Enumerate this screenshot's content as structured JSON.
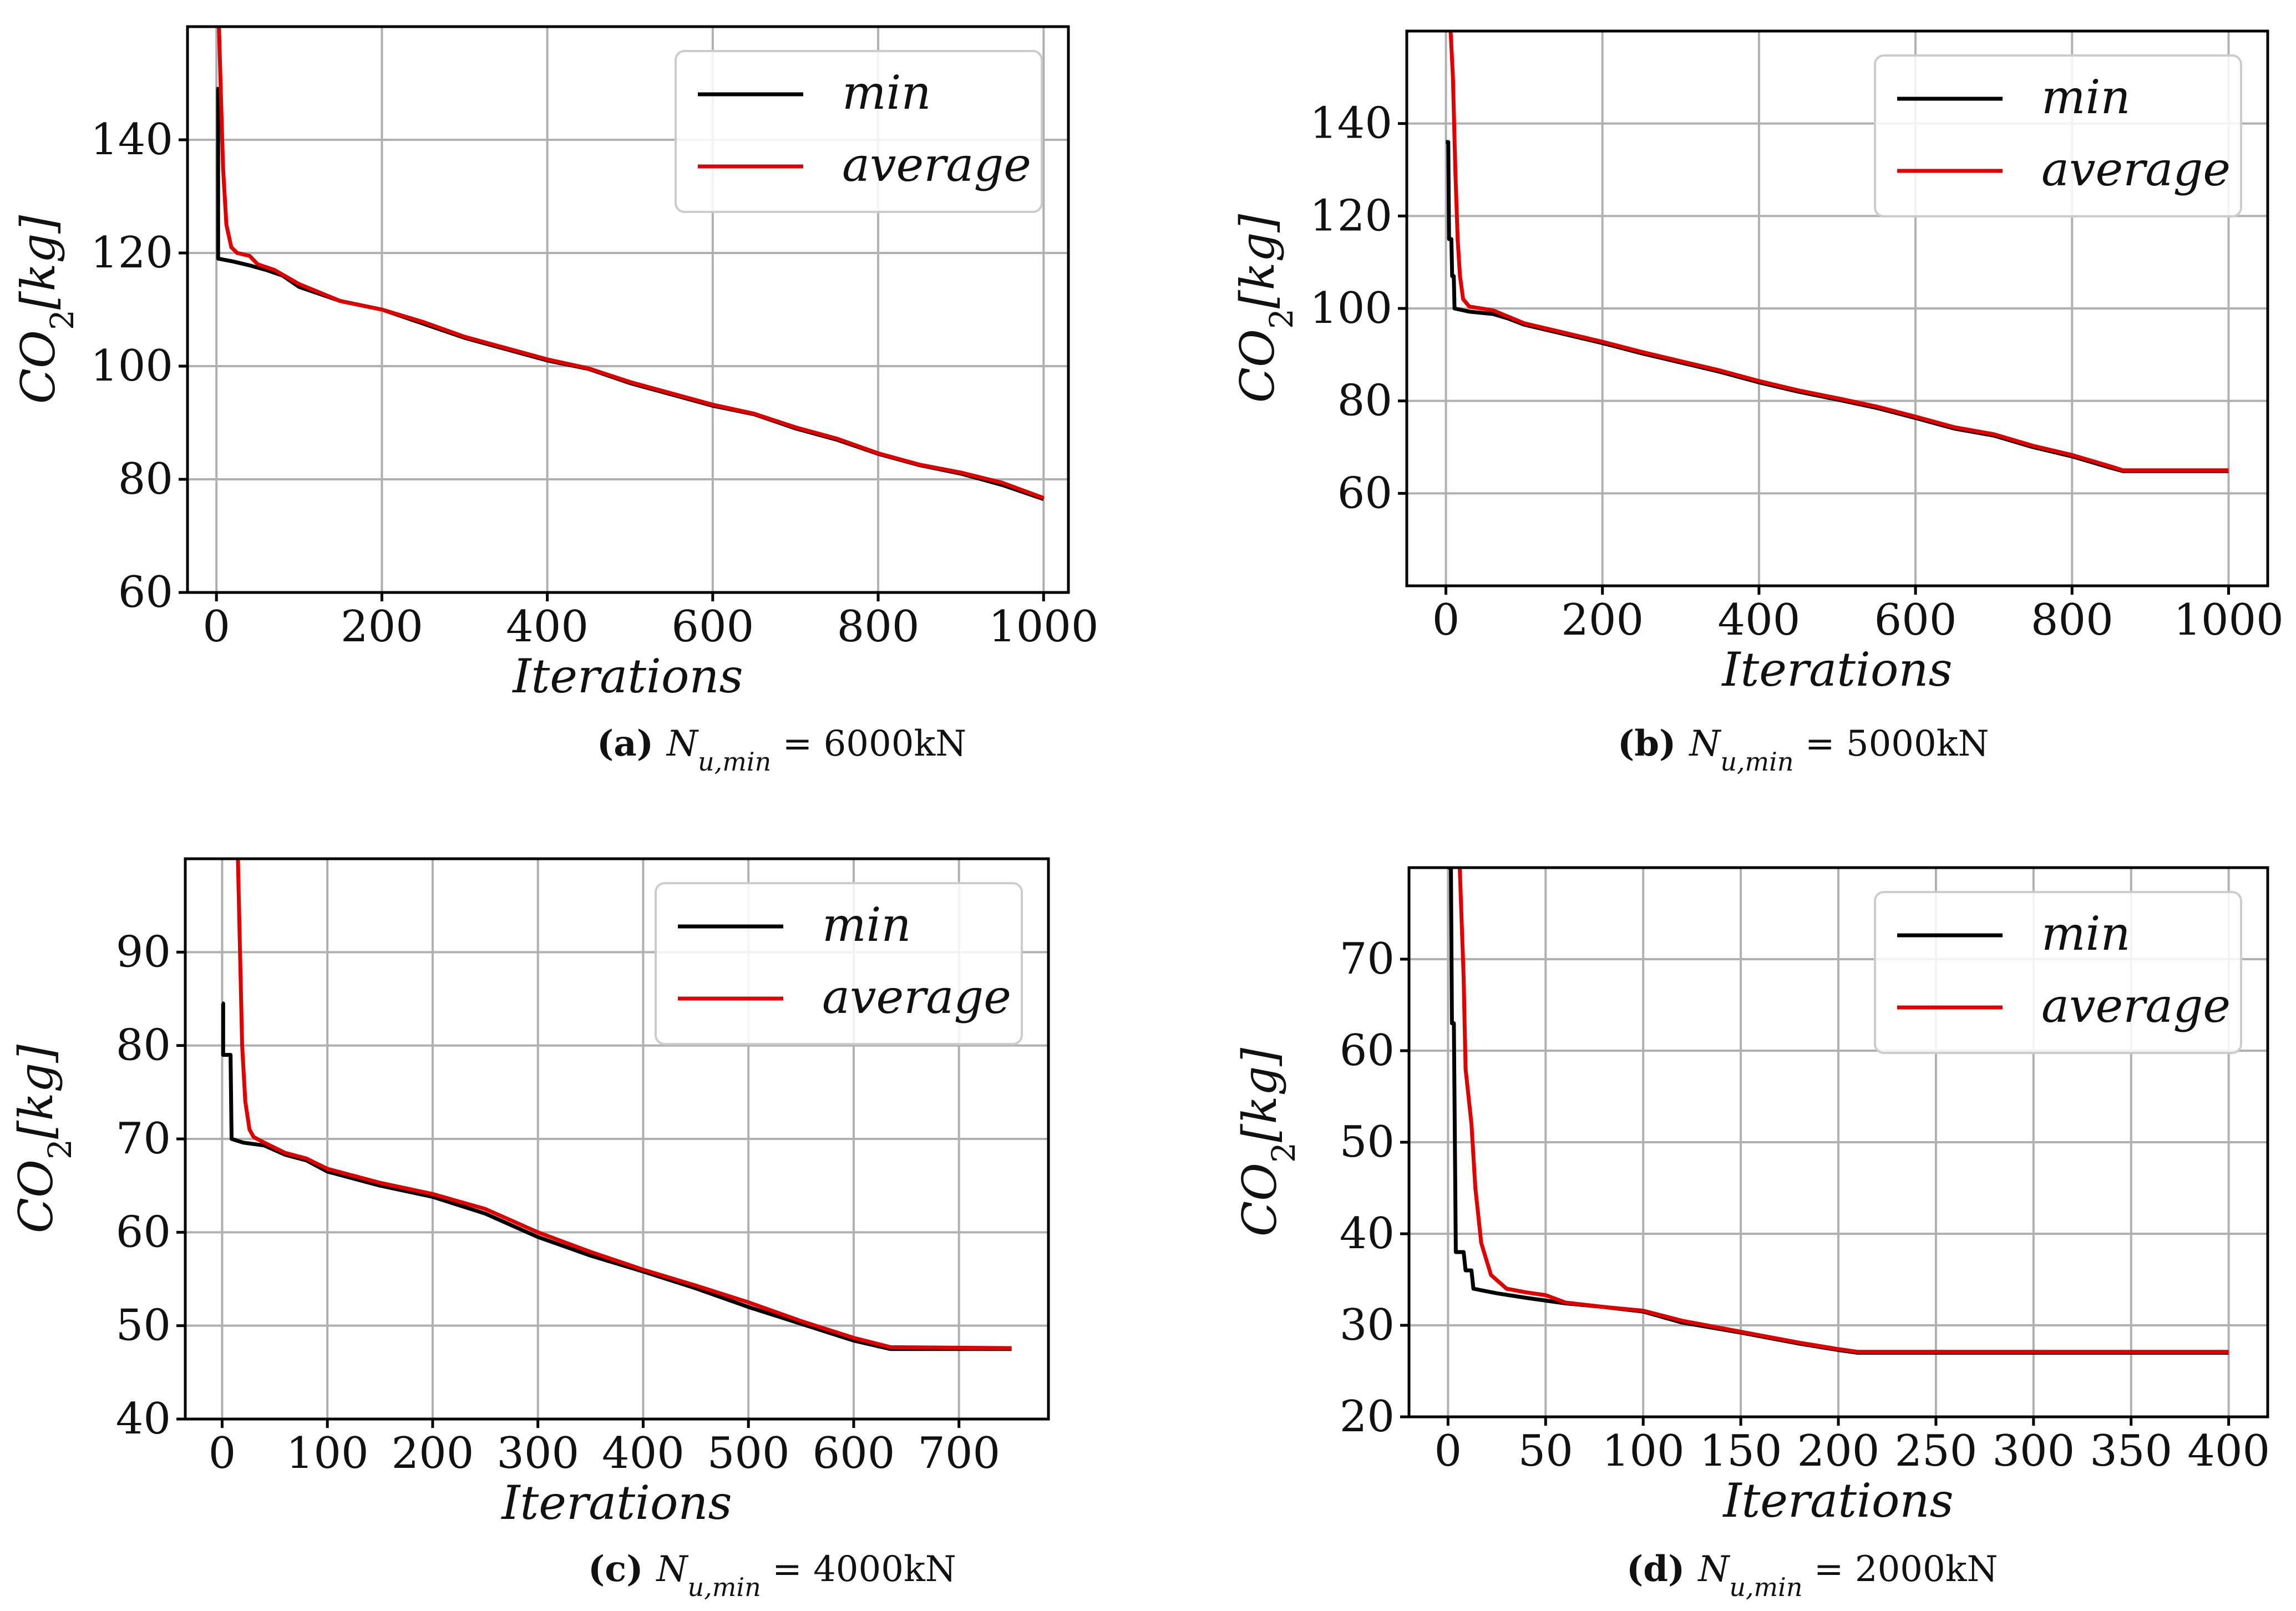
{
  "chart_data": [
    {
      "type": "line",
      "panel": "a",
      "caption": {
        "letter": "(a)",
        "var": "N",
        "sub": "u,min",
        "value": " = 6000kN"
      },
      "xlabel": "Iterations",
      "ylabel": "CO2[kg]",
      "xlim": [
        -35,
        1030
      ],
      "ylim": [
        60,
        160
      ],
      "xticks": [
        0,
        200,
        400,
        600,
        800,
        1000
      ],
      "yticks": [
        60,
        80,
        100,
        120,
        140
      ],
      "legend": {
        "position": "top-right",
        "entries": [
          "min",
          "average"
        ]
      },
      "series": [
        {
          "name": "min",
          "color": "#000000",
          "points": [
            [
              0,
              149
            ],
            [
              2,
              149
            ],
            [
              2,
              119
            ],
            [
              20,
              118.5
            ],
            [
              40,
              117.8
            ],
            [
              60,
              117
            ],
            [
              80,
              116
            ],
            [
              100,
              114
            ],
            [
              150,
              111.5
            ],
            [
              200,
              110
            ],
            [
              250,
              107.5
            ],
            [
              300,
              105
            ],
            [
              350,
              103
            ],
            [
              400,
              101
            ],
            [
              450,
              99.5
            ],
            [
              500,
              97
            ],
            [
              550,
              95
            ],
            [
              600,
              93
            ],
            [
              650,
              91.5
            ],
            [
              700,
              89
            ],
            [
              750,
              87
            ],
            [
              800,
              84.5
            ],
            [
              850,
              82.5
            ],
            [
              900,
              81
            ],
            [
              950,
              79
            ],
            [
              1000,
              76.5
            ]
          ]
        },
        {
          "name": "average",
          "color": "#e00000",
          "points": [
            [
              3,
              160
            ],
            [
              5,
              150
            ],
            [
              8,
              135
            ],
            [
              12,
              125
            ],
            [
              18,
              121
            ],
            [
              25,
              120
            ],
            [
              40,
              119.5
            ],
            [
              50,
              118
            ],
            [
              70,
              117
            ],
            [
              100,
              114.5
            ],
            [
              150,
              111.5
            ],
            [
              200,
              110
            ],
            [
              250,
              107.8
            ],
            [
              300,
              105.2
            ],
            [
              350,
              103.2
            ],
            [
              400,
              101.2
            ],
            [
              450,
              99.6
            ],
            [
              500,
              97.2
            ],
            [
              550,
              95.2
            ],
            [
              600,
              93.2
            ],
            [
              650,
              91.6
            ],
            [
              700,
              89.2
            ],
            [
              750,
              87.2
            ],
            [
              800,
              84.6
            ],
            [
              850,
              82.6
            ],
            [
              900,
              81.2
            ],
            [
              950,
              79.4
            ],
            [
              1000,
              76.7
            ]
          ]
        }
      ]
    },
    {
      "type": "line",
      "panel": "b",
      "caption": {
        "letter": "(b)",
        "var": "N",
        "sub": "u,min",
        "value": " = 5000kN"
      },
      "xlabel": "Iterations",
      "ylabel": "CO2[kg]",
      "xlim": [
        -50,
        1050
      ],
      "ylim": [
        40,
        160
      ],
      "xticks": [
        0,
        200,
        400,
        600,
        800,
        1000
      ],
      "yticks": [
        60,
        80,
        100,
        120,
        140
      ],
      "legend": {
        "position": "top-right",
        "entries": [
          "min",
          "average"
        ]
      },
      "series": [
        {
          "name": "min",
          "color": "#000000",
          "points": [
            [
              0,
              136
            ],
            [
              3,
              136
            ],
            [
              4,
              115
            ],
            [
              7,
              115
            ],
            [
              8,
              107
            ],
            [
              10,
              107
            ],
            [
              11,
              100
            ],
            [
              30,
              99.3
            ],
            [
              60,
              98.8
            ],
            [
              80,
              97.8
            ],
            [
              100,
              96.5
            ],
            [
              150,
              94.5
            ],
            [
              200,
              92.5
            ],
            [
              250,
              90.3
            ],
            [
              300,
              88.3
            ],
            [
              350,
              86.3
            ],
            [
              400,
              84
            ],
            [
              450,
              82
            ],
            [
              500,
              80.3
            ],
            [
              550,
              78.5
            ],
            [
              600,
              76.3
            ],
            [
              650,
              74
            ],
            [
              700,
              72.5
            ],
            [
              750,
              70
            ],
            [
              800,
              68
            ],
            [
              850,
              65.5
            ],
            [
              865,
              64.8
            ],
            [
              1000,
              64.8
            ]
          ]
        },
        {
          "name": "average",
          "color": "#e00000",
          "points": [
            [
              6,
              160
            ],
            [
              9,
              150
            ],
            [
              12,
              130
            ],
            [
              15,
              115
            ],
            [
              18,
              107
            ],
            [
              22,
              102
            ],
            [
              30,
              100.4
            ],
            [
              60,
              99.6
            ],
            [
              80,
              98.2
            ],
            [
              100,
              96.8
            ],
            [
              150,
              94.8
            ],
            [
              200,
              92.8
            ],
            [
              250,
              90.6
            ],
            [
              300,
              88.6
            ],
            [
              350,
              86.6
            ],
            [
              400,
              84.3
            ],
            [
              450,
              82.3
            ],
            [
              500,
              80.6
            ],
            [
              550,
              78.8
            ],
            [
              600,
              76.6
            ],
            [
              650,
              74.3
            ],
            [
              700,
              72.8
            ],
            [
              750,
              70.3
            ],
            [
              800,
              68.3
            ],
            [
              850,
              65.8
            ],
            [
              865,
              65
            ],
            [
              1000,
              65
            ]
          ]
        }
      ]
    },
    {
      "type": "line",
      "panel": "c",
      "caption": {
        "letter": "(c)",
        "var": "N",
        "sub": "u,min",
        "value": " = 4000kN"
      },
      "xlabel": "Iterations",
      "ylabel": "CO2[kg]",
      "xlim": [
        -35,
        785
      ],
      "ylim": [
        40,
        100
      ],
      "xticks": [
        0,
        100,
        200,
        300,
        400,
        500,
        600,
        700
      ],
      "yticks": [
        40,
        50,
        60,
        70,
        80,
        90
      ],
      "legend": {
        "position": "top-right",
        "entries": [
          "min",
          "average"
        ]
      },
      "series": [
        {
          "name": "min",
          "color": "#000000",
          "points": [
            [
              0,
              84.5
            ],
            [
              1,
              84.5
            ],
            [
              1,
              79
            ],
            [
              8,
              79
            ],
            [
              9,
              70
            ],
            [
              20,
              69.6
            ],
            [
              40,
              69.3
            ],
            [
              60,
              68.3
            ],
            [
              80,
              67.7
            ],
            [
              100,
              66.5
            ],
            [
              150,
              65
            ],
            [
              200,
              63.8
            ],
            [
              250,
              62
            ],
            [
              300,
              59.5
            ],
            [
              350,
              57.5
            ],
            [
              400,
              55.8
            ],
            [
              450,
              54
            ],
            [
              500,
              52
            ],
            [
              550,
              50.2
            ],
            [
              600,
              48.4
            ],
            [
              635,
              47.5
            ],
            [
              750,
              47.5
            ]
          ]
        },
        {
          "name": "average",
          "color": "#e00000",
          "points": [
            [
              15,
              100
            ],
            [
              17,
              90
            ],
            [
              19,
              80
            ],
            [
              22,
              74
            ],
            [
              26,
              71
            ],
            [
              30,
              70.2
            ],
            [
              40,
              69.6
            ],
            [
              60,
              68.5
            ],
            [
              80,
              67.9
            ],
            [
              100,
              66.8
            ],
            [
              150,
              65.3
            ],
            [
              200,
              64.1
            ],
            [
              250,
              62.5
            ],
            [
              300,
              60
            ],
            [
              350,
              57.9
            ],
            [
              400,
              56
            ],
            [
              450,
              54.3
            ],
            [
              500,
              52.5
            ],
            [
              550,
              50.5
            ],
            [
              600,
              48.7
            ],
            [
              635,
              47.7
            ],
            [
              750,
              47.6
            ]
          ]
        }
      ]
    },
    {
      "type": "line",
      "panel": "d",
      "caption": {
        "letter": "(d)",
        "var": "N",
        "sub": "u,min",
        "value": " = 2000kN"
      },
      "xlabel": "Iterations",
      "ylabel": "CO2[kg]",
      "xlim": [
        -20,
        420
      ],
      "ylim": [
        20,
        80
      ],
      "xticks": [
        0,
        50,
        100,
        150,
        200,
        250,
        300,
        350,
        400
      ],
      "yticks": [
        20,
        30,
        40,
        50,
        60,
        70
      ],
      "legend": {
        "position": "top-right",
        "entries": [
          "min",
          "average"
        ]
      },
      "series": [
        {
          "name": "min",
          "color": "#000000",
          "points": [
            [
              0,
              80
            ],
            [
              1.5,
              80
            ],
            [
              2,
              63
            ],
            [
              3,
              63
            ],
            [
              4,
              38
            ],
            [
              8,
              38
            ],
            [
              9,
              36
            ],
            [
              12,
              36
            ],
            [
              13,
              34
            ],
            [
              25,
              33.5
            ],
            [
              40,
              33
            ],
            [
              60,
              32.4
            ],
            [
              80,
              32
            ],
            [
              100,
              31.5
            ],
            [
              120,
              30.3
            ],
            [
              150,
              29.2
            ],
            [
              180,
              28
            ],
            [
              200,
              27.3
            ],
            [
              210,
              27
            ],
            [
              400,
              27
            ]
          ]
        },
        {
          "name": "average",
          "color": "#e00000",
          "points": [
            [
              6,
              80
            ],
            [
              8,
              68
            ],
            [
              9,
              58
            ],
            [
              12,
              52
            ],
            [
              14,
              45
            ],
            [
              17,
              39
            ],
            [
              22,
              35.5
            ],
            [
              30,
              34
            ],
            [
              40,
              33.6
            ],
            [
              50,
              33.3
            ],
            [
              60,
              32.5
            ],
            [
              80,
              32
            ],
            [
              100,
              31.6
            ],
            [
              120,
              30.5
            ],
            [
              150,
              29.3
            ],
            [
              180,
              28.1
            ],
            [
              200,
              27.4
            ],
            [
              210,
              27.1
            ],
            [
              400,
              27.1
            ]
          ]
        }
      ]
    }
  ]
}
